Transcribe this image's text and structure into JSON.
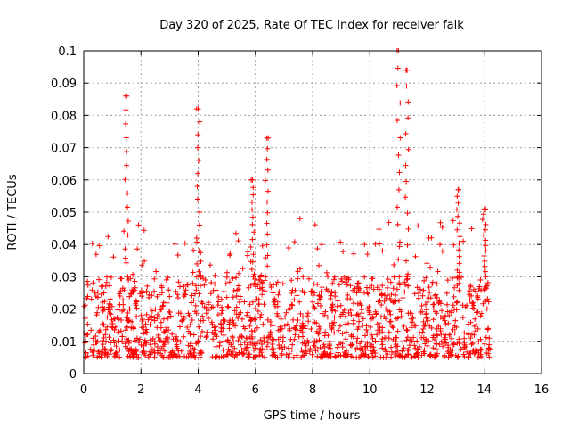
{
  "chart_data": {
    "type": "scatter",
    "title": "Day 320 of 2025, Rate Of TEC Index for receiver falk",
    "xlabel": "GPS time / hours",
    "ylabel": "ROTI / TECUs",
    "xlim": [
      0,
      16
    ],
    "ylim": [
      0,
      0.1
    ],
    "x_ticks": [
      "0",
      "2",
      "4",
      "6",
      "8",
      "10",
      "12",
      "14",
      "16"
    ],
    "y_ticks": [
      "0",
      "0.01",
      "0.02",
      "0.03",
      "0.04",
      "0.05",
      "0.06",
      "0.07",
      "0.08",
      "0.09",
      "0.1"
    ],
    "grid": true,
    "marker": "plus",
    "color": "#ff0000",
    "data_extent_hours": [
      0,
      14.2
    ],
    "baseline_range": [
      0.005,
      0.03
    ],
    "peaks": [
      {
        "x": 1.5,
        "y": 0.086
      },
      {
        "x": 4.0,
        "y": 0.082
      },
      {
        "x": 6.4,
        "y": 0.073
      },
      {
        "x": 5.9,
        "y": 0.06
      },
      {
        "x": 11.0,
        "y": 0.1
      },
      {
        "x": 11.3,
        "y": 0.094
      },
      {
        "x": 13.1,
        "y": 0.057
      },
      {
        "x": 14.0,
        "y": 0.051
      }
    ]
  }
}
